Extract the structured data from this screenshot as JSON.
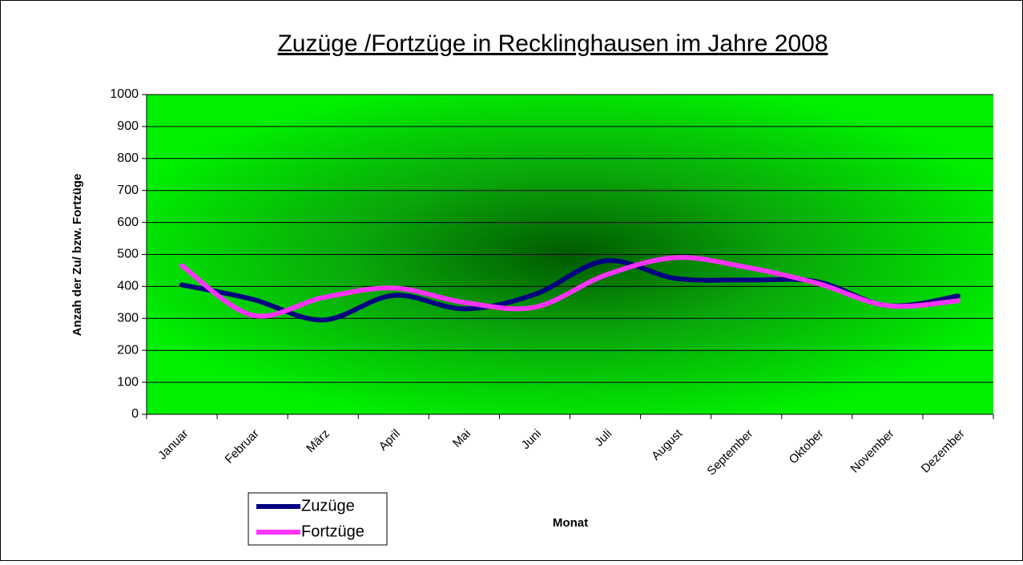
{
  "chart_data": {
    "type": "line",
    "title": "Zuzüge /Fortzüge in Recklinghausen im Jahre 2008",
    "x_label": "Monat",
    "y_label": "Anzah der Zu/ bzw. Fortzüge",
    "categories": [
      "Januar",
      "Februar",
      "März",
      "April",
      "Mai",
      "Juni",
      "Juli",
      "August",
      "September",
      "Oktober",
      "November",
      "Dezember"
    ],
    "series": [
      {
        "name": "Zuzüge",
        "color": "#000080",
        "values": [
          405,
          360,
          295,
          372,
          330,
          375,
          480,
          425,
          420,
          415,
          340,
          370
        ]
      },
      {
        "name": "Fortzüge",
        "color": "#ff33ff",
        "values": [
          465,
          310,
          365,
          395,
          350,
          335,
          435,
          490,
          460,
          410,
          340,
          355
        ]
      }
    ],
    "ylim": [
      0,
      1000
    ],
    "yticks": [
      0,
      100,
      200,
      300,
      400,
      500,
      600,
      700,
      800,
      900,
      1000
    ],
    "grid": true,
    "smooth": true,
    "legend": "bottom-left"
  }
}
